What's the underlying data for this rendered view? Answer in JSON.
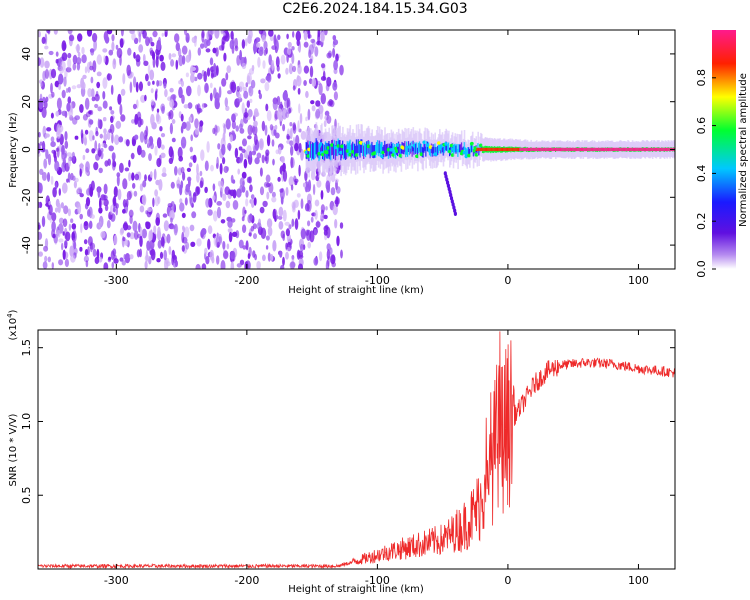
{
  "title": "C2E6.2024.184.15.34.G03",
  "colors": {
    "snr_line": "#ee2a2a",
    "noise": "#7a1ee6",
    "noise_light": "#cfaef7",
    "frame": "#000000"
  },
  "chart_data": [
    {
      "type": "heatmap",
      "name": "spectrogram",
      "xlabel": "Height of straight line (km)",
      "ylabel": "Frequency (Hz)",
      "xlim": [
        -360,
        128
      ],
      "ylim": [
        -50,
        50
      ],
      "xticks": [
        -300,
        -200,
        -100,
        0,
        100
      ],
      "yticks": [
        -40,
        -20,
        0,
        20,
        40
      ],
      "grid": false,
      "colorbar": {
        "label": "Normalized spectral amplitude",
        "range": [
          0,
          1
        ],
        "ticks": [
          "0.0",
          "0.2",
          "0.4",
          "0.6",
          "0.8"
        ],
        "colormap": [
          "#ffffff",
          "#8a2be2",
          "#2020ff",
          "#00d8ff",
          "#00ff40",
          "#ffff00",
          "#ff0000",
          "#ff1493"
        ]
      },
      "features": {
        "noise_region_x": [
          -360,
          -135
        ],
        "broadband_noise_amplitude": 0.05,
        "signal_band_x": [
          -155,
          128
        ],
        "signal_center_freq": 0,
        "signal_half_width_hz": [
          7,
          1.5
        ],
        "signal_peak_amplitude": 0.95
      }
    },
    {
      "type": "line",
      "name": "snr",
      "xlabel": "Height of straight line (km)",
      "ylabel": "SNR (10 * V/V)",
      "scale_label": "(x10^4)",
      "xlim": [
        -360,
        128
      ],
      "ylim": [
        0,
        1.62
      ],
      "xticks": [
        -300,
        -200,
        -100,
        0,
        100
      ],
      "yticks": [
        0.5,
        1.0,
        1.5
      ],
      "grid": false,
      "series": [
        {
          "name": "",
          "x": [
            -360,
            -300,
            -200,
            -130,
            -110,
            -90,
            -70,
            -50,
            -35,
            -25,
            -15,
            -10,
            0,
            10,
            20,
            30,
            40,
            60,
            80,
            100,
            128
          ],
          "y": [
            0.02,
            0.02,
            0.02,
            0.02,
            0.07,
            0.12,
            0.16,
            0.2,
            0.28,
            0.38,
            0.58,
            0.82,
            0.98,
            1.1,
            1.25,
            1.34,
            1.38,
            1.4,
            1.39,
            1.36,
            1.33
          ]
        }
      ]
    }
  ]
}
